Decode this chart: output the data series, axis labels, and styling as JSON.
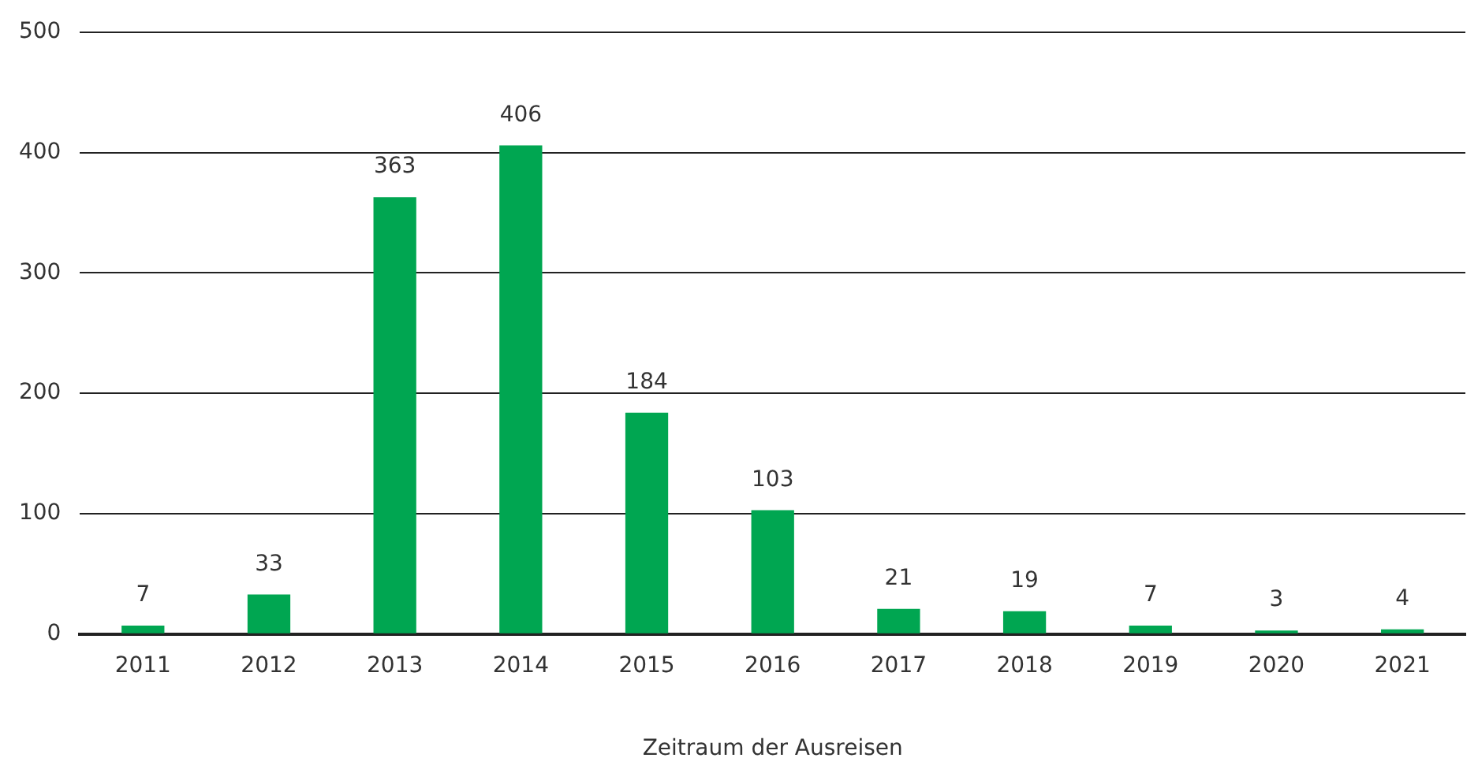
{
  "chart_data": {
    "type": "bar",
    "xlabel": "Zeitraum der Ausreisen",
    "categories": [
      "2011",
      "2012",
      "2013",
      "2014",
      "2015",
      "2016",
      "2017",
      "2018",
      "2019",
      "2020",
      "2021"
    ],
    "values": [
      7,
      33,
      363,
      406,
      184,
      103,
      21,
      19,
      7,
      3,
      4
    ],
    "color": "#00a651",
    "ylim": [
      0,
      500
    ],
    "yticks": [
      0,
      100,
      200,
      300,
      400,
      500
    ],
    "grid": "y",
    "legend": false,
    "data_labels": true
  }
}
